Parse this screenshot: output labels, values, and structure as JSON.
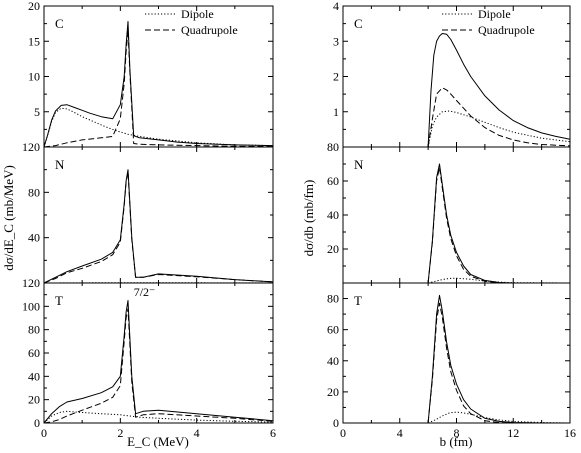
{
  "figure": {
    "left_ylabel": "dσ/dE_C (mb/MeV)",
    "left_xlabel": "E_C (MeV)",
    "right_ylabel": "dσ/db (mb/fm)",
    "right_xlabel": "b (fm)",
    "legend": [
      "Dipole",
      "Quadrupole"
    ],
    "line_styles": {
      "total": "solid",
      "Dipole": "dotted",
      "Quadrupole": "dashed"
    }
  },
  "chart_data": [
    {
      "type": "line",
      "column": "left",
      "row": 0,
      "panel_label": "C",
      "xlim": [
        0,
        6
      ],
      "ylim": [
        0,
        20
      ],
      "xticks": [
        0,
        2,
        4,
        6
      ],
      "yticks": [
        0,
        5,
        10,
        15,
        20
      ],
      "legend": true,
      "legend_position": "top-right",
      "series": [
        {
          "style": "solid",
          "x": [
            0,
            0.1,
            0.2,
            0.3,
            0.45,
            0.6,
            0.8,
            1.0,
            1.2,
            1.5,
            1.8,
            2.0,
            2.1,
            2.15,
            2.2,
            2.25,
            2.35,
            2.5,
            3.0,
            3.5,
            4.0,
            5.0,
            6.0
          ],
          "y": [
            0,
            1.8,
            3.8,
            5.1,
            5.9,
            6.0,
            5.6,
            5.2,
            4.8,
            4.3,
            4.0,
            6.0,
            10.0,
            14.5,
            17.8,
            11.0,
            1.6,
            1.3,
            1.0,
            0.7,
            0.5,
            0.3,
            0.2
          ]
        },
        {
          "name": "Dipole",
          "style": "dotted",
          "x": [
            0,
            0.1,
            0.2,
            0.3,
            0.45,
            0.6,
            0.8,
            1.0,
            1.3,
            1.6,
            1.9,
            2.2,
            2.5,
            3.0,
            4.0,
            5.0,
            6.0
          ],
          "y": [
            0,
            1.7,
            3.6,
            4.9,
            5.5,
            5.4,
            4.9,
            4.3,
            3.6,
            2.9,
            2.3,
            1.8,
            1.5,
            1.1,
            0.6,
            0.3,
            0.2
          ]
        },
        {
          "name": "Quadrupole",
          "style": "dashed",
          "x": [
            0,
            0.3,
            0.6,
            1.0,
            1.5,
            1.8,
            2.0,
            2.1,
            2.15,
            2.2,
            2.25,
            2.35,
            2.5,
            3.0,
            4.0,
            5.0,
            6.0
          ],
          "y": [
            0,
            0.2,
            0.6,
            1.0,
            1.3,
            1.5,
            4.0,
            9.0,
            13.5,
            16.5,
            10.5,
            0.5,
            0.4,
            0.3,
            0.2,
            0.1,
            0.05
          ]
        }
      ]
    },
    {
      "type": "line",
      "column": "left",
      "row": 1,
      "panel_label": "N",
      "xlim": [
        0,
        6
      ],
      "ylim": [
        0,
        120
      ],
      "xticks": [
        0,
        2,
        4,
        6
      ],
      "yticks": [
        0,
        40,
        80,
        120
      ],
      "series": [
        {
          "style": "solid",
          "x": [
            0,
            0.3,
            0.6,
            1.0,
            1.5,
            1.8,
            2.0,
            2.1,
            2.15,
            2.2,
            2.3,
            2.4,
            2.6,
            3.0,
            4.0,
            5.0,
            6.0
          ],
          "y": [
            0,
            5,
            10,
            15,
            21,
            27,
            38,
            70,
            90,
            100,
            40,
            5,
            5,
            8,
            6,
            3,
            1
          ]
        },
        {
          "name": "Dipole",
          "style": "dotted",
          "x": [
            0,
            2,
            4,
            6
          ],
          "y": [
            0,
            0.3,
            0.2,
            0.1
          ]
        },
        {
          "name": "Quadrupole",
          "style": "dashed",
          "x": [
            0,
            0.3,
            0.6,
            1.0,
            1.5,
            1.8,
            2.0,
            2.1,
            2.15,
            2.2,
            2.3,
            2.4,
            2.6,
            3.0,
            4.0,
            5.0,
            6.0
          ],
          "y": [
            0,
            4,
            9,
            13,
            19,
            25,
            36,
            68,
            89,
            98,
            38,
            5,
            5,
            7.5,
            5.5,
            3,
            1
          ]
        }
      ]
    },
    {
      "type": "line",
      "column": "left",
      "row": 2,
      "panel_label": "T",
      "annotation": "7/2⁻",
      "xlim": [
        0,
        6
      ],
      "ylim": [
        0,
        120
      ],
      "xticks": [
        0,
        2,
        4,
        6
      ],
      "yticks": [
        0,
        20,
        40,
        60,
        80,
        100,
        120
      ],
      "series": [
        {
          "style": "solid",
          "x": [
            0,
            0.2,
            0.4,
            0.6,
            1.0,
            1.5,
            1.8,
            2.0,
            2.1,
            2.15,
            2.2,
            2.3,
            2.4,
            2.6,
            3.0,
            4.0,
            5.0,
            6.0
          ],
          "y": [
            0,
            8,
            14,
            18,
            21,
            26,
            31,
            40,
            75,
            95,
            105,
            40,
            8,
            10,
            11,
            8,
            5,
            2
          ]
        },
        {
          "name": "Dipole",
          "style": "dotted",
          "x": [
            0,
            0.2,
            0.4,
            0.6,
            1.0,
            1.5,
            2.0,
            2.5,
            3.0,
            4.0,
            5.0,
            6.0
          ],
          "y": [
            0,
            6,
            9,
            10,
            9,
            8,
            7,
            5,
            4,
            2.5,
            1.5,
            0.8
          ]
        },
        {
          "name": "Quadrupole",
          "style": "dashed",
          "x": [
            0,
            0.2,
            0.4,
            0.6,
            1.0,
            1.5,
            1.8,
            2.0,
            2.1,
            2.15,
            2.2,
            2.3,
            2.4,
            2.6,
            3.0,
            4.0,
            5.0,
            6.0
          ],
          "y": [
            0,
            1,
            3,
            6,
            11,
            17,
            22,
            32,
            70,
            90,
            98,
            35,
            5,
            7,
            8,
            6,
            4,
            1.5
          ]
        }
      ]
    },
    {
      "type": "line",
      "column": "right",
      "row": 0,
      "panel_label": "C",
      "xlim": [
        0,
        16
      ],
      "ylim": [
        0,
        4
      ],
      "xticks": [
        0,
        4,
        8,
        12,
        16
      ],
      "yticks": [
        0,
        1,
        2,
        3,
        4
      ],
      "legend": true,
      "legend_position": "top-right",
      "series": [
        {
          "style": "solid",
          "x": [
            6.0,
            6.2,
            6.4,
            6.6,
            6.8,
            7.0,
            7.3,
            7.6,
            8.0,
            8.5,
            9.0,
            10.0,
            11.0,
            12.0,
            13.0,
            14.0,
            15.0,
            16.0
          ],
          "y": [
            0,
            1.6,
            2.6,
            3.0,
            3.15,
            3.22,
            3.2,
            3.05,
            2.75,
            2.35,
            2.0,
            1.45,
            1.05,
            0.75,
            0.55,
            0.4,
            0.3,
            0.22
          ]
        },
        {
          "name": "Dipole",
          "style": "dotted",
          "x": [
            6.0,
            6.3,
            6.6,
            7.0,
            7.5,
            8.0,
            9.0,
            10.0,
            11.0,
            12.0,
            14.0,
            16.0
          ],
          "y": [
            0,
            0.6,
            0.85,
            1.0,
            1.02,
            0.98,
            0.85,
            0.7,
            0.55,
            0.42,
            0.25,
            0.15
          ]
        },
        {
          "name": "Quadrupole",
          "style": "dashed",
          "x": [
            6.0,
            6.3,
            6.6,
            7.0,
            7.3,
            7.6,
            8.0,
            8.5,
            9.0,
            10.0,
            11.0,
            12.0,
            13.0,
            14.0,
            16.0
          ],
          "y": [
            0,
            0.8,
            1.5,
            1.68,
            1.62,
            1.5,
            1.32,
            1.1,
            0.88,
            0.55,
            0.33,
            0.2,
            0.12,
            0.07,
            0.03
          ]
        }
      ]
    },
    {
      "type": "line",
      "column": "right",
      "row": 1,
      "panel_label": "N",
      "xlim": [
        0,
        16
      ],
      "ylim": [
        0,
        80
      ],
      "xticks": [
        0,
        4,
        8,
        12,
        16
      ],
      "yticks": [
        0,
        20,
        40,
        60,
        80
      ],
      "series": [
        {
          "style": "solid",
          "x": [
            6.0,
            6.3,
            6.6,
            6.8,
            7.0,
            7.3,
            7.6,
            8.0,
            8.5,
            9.0,
            10.0,
            11.0,
            12.0,
            16.0
          ],
          "y": [
            0,
            25,
            62,
            70,
            58,
            40,
            28,
            18,
            10,
            5,
            1.5,
            0.3,
            0,
            0
          ]
        },
        {
          "name": "Dipole",
          "style": "dotted",
          "x": [
            6.0,
            6.5,
            7.0,
            7.5,
            8.0,
            9.0,
            10.0,
            11.0,
            12.0,
            16.0
          ],
          "y": [
            0,
            1.0,
            2.0,
            2.7,
            2.8,
            2.2,
            1.2,
            0.5,
            0.2,
            0
          ]
        },
        {
          "name": "Quadrupole",
          "style": "dashed",
          "x": [
            6.0,
            6.3,
            6.6,
            6.8,
            7.0,
            7.3,
            7.6,
            8.0,
            8.5,
            9.0,
            10.0,
            11.0,
            12.0,
            16.0
          ],
          "y": [
            0,
            24,
            60,
            68,
            56,
            38,
            26,
            16,
            8,
            4,
            1,
            0.2,
            0,
            0
          ]
        }
      ]
    },
    {
      "type": "line",
      "column": "right",
      "row": 2,
      "panel_label": "T",
      "xlim": [
        0,
        16
      ],
      "ylim": [
        0,
        90
      ],
      "xticks": [
        0,
        4,
        8,
        12,
        16
      ],
      "yticks": [
        0,
        20,
        40,
        60,
        80
      ],
      "series": [
        {
          "style": "solid",
          "x": [
            6.0,
            6.3,
            6.6,
            6.8,
            7.0,
            7.3,
            7.6,
            8.0,
            8.5,
            9.0,
            10.0,
            11.0,
            12.0,
            14.0,
            16.0
          ],
          "y": [
            0,
            30,
            70,
            82,
            72,
            52,
            37,
            25,
            15,
            9,
            3,
            1,
            0.3,
            0,
            0
          ]
        },
        {
          "name": "Dipole",
          "style": "dotted",
          "x": [
            6.0,
            6.5,
            7.0,
            7.5,
            8.0,
            8.5,
            9.0,
            10.0,
            11.0,
            12.0,
            14.0,
            16.0
          ],
          "y": [
            0,
            2,
            4.5,
            6.5,
            7.0,
            6.5,
            5.5,
            3.5,
            2.0,
            1.0,
            0.3,
            0
          ]
        },
        {
          "name": "Quadrupole",
          "style": "dashed",
          "x": [
            6.0,
            6.3,
            6.6,
            6.8,
            7.0,
            7.3,
            7.6,
            8.0,
            8.5,
            9.0,
            10.0,
            11.0,
            12.0,
            14.0,
            16.0
          ],
          "y": [
            0,
            28,
            66,
            77,
            68,
            48,
            33,
            21,
            11,
            6,
            1.5,
            0.3,
            0,
            0,
            0
          ]
        }
      ]
    }
  ]
}
